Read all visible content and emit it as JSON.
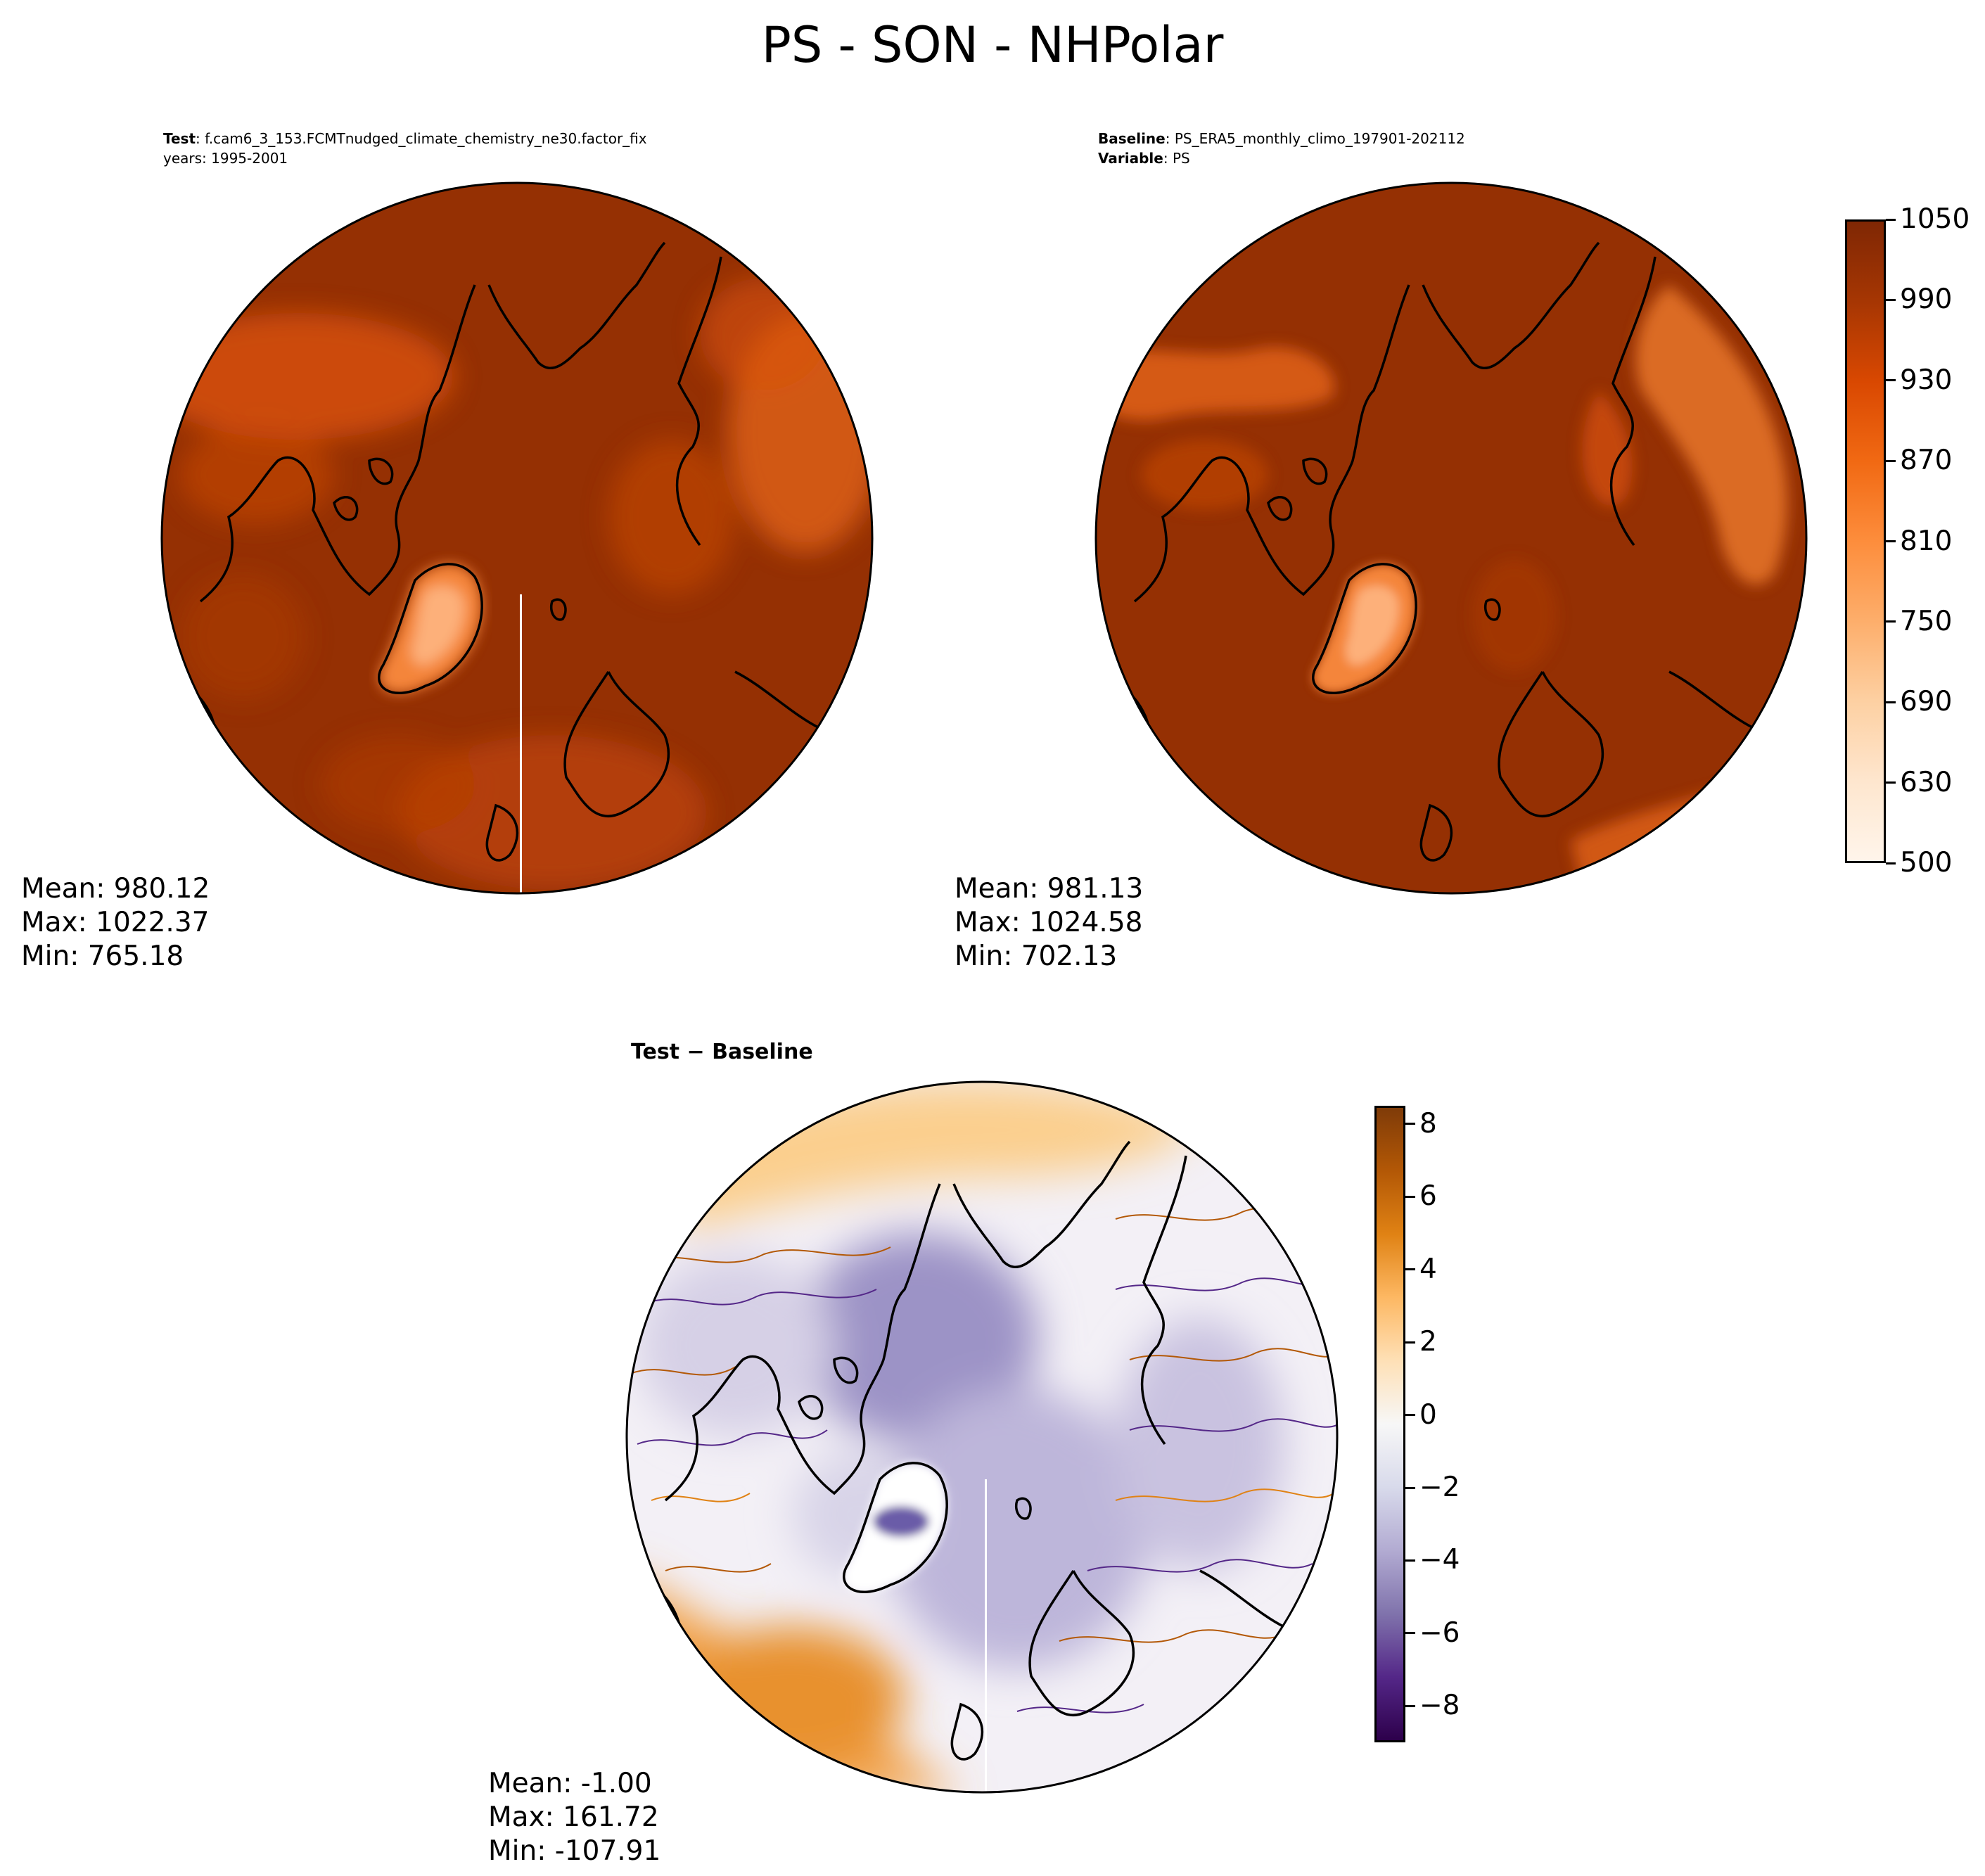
{
  "title": "PS - SON - NHPolar",
  "test_panel": {
    "label_key": "Test",
    "label_value": "f.cam6_3_153.FCMTnudged_climate_chemistry_ne30.factor_fix",
    "years": "years: 1995-2001",
    "stats": {
      "mean": "Mean: 980.12",
      "max": "Max: 1022.37",
      "min": "Min: 765.18"
    }
  },
  "baseline_panel": {
    "label_key": "Baseline",
    "label_value": "PS_ERA5_monthly_climo_197901-202112",
    "var_key": "Variable",
    "var_value": "PS",
    "stats": {
      "mean": "Mean: 981.13",
      "max": "Max: 1024.58",
      "min": "Min: 702.13"
    }
  },
  "diff_panel": {
    "title_a": "Test",
    "title_op": "−",
    "title_b": "Baseline",
    "stats": {
      "mean": "Mean: -1.00",
      "max": "Max: 161.72",
      "min": "Min: -107.91"
    }
  },
  "colorbar_top": {
    "ticks": [
      "500",
      "630",
      "690",
      "750",
      "810",
      "870",
      "930",
      "990",
      "1050"
    ],
    "colors": [
      "#fff5eb",
      "#fee6ce",
      "#fdd0a2",
      "#fdae6b",
      "#fd8d3c",
      "#f16913",
      "#d94801",
      "#a63603",
      "#7f2704"
    ]
  },
  "colorbar_diff": {
    "ticks": [
      "−8",
      "−6",
      "−4",
      "−2",
      "0",
      "2",
      "4",
      "6",
      "8"
    ],
    "colors": [
      "#2d004b",
      "#542788",
      "#8073ac",
      "#b2abd2",
      "#d8daeb",
      "#f7f7f7",
      "#fee0b6",
      "#fdb863",
      "#e08214",
      "#b35806",
      "#7f3b08"
    ]
  }
}
